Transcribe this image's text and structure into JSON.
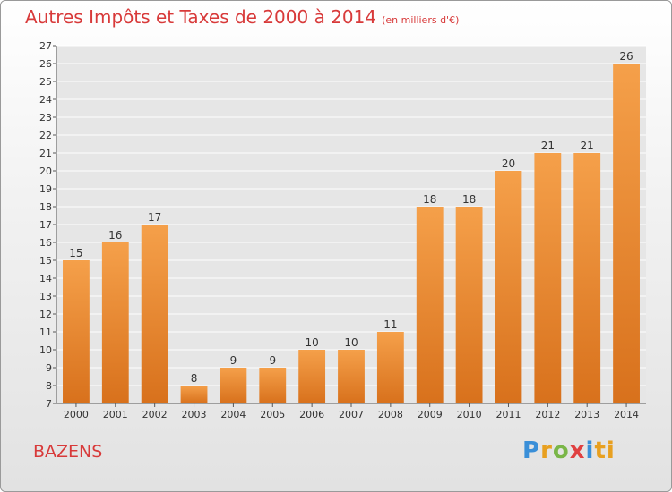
{
  "header": {
    "title": "Autres Impôts et Taxes de 2000 à 2014",
    "unit": "(en milliers d'€)"
  },
  "footer": {
    "commune": "BAZENS",
    "logo": [
      "P",
      "r",
      "o",
      "x",
      "i",
      "ti"
    ]
  },
  "colors": {
    "bar_top": "#f5a04a",
    "bar_bottom": "#d8711c",
    "title": "#d83a3a",
    "grid": "#ffffff",
    "plot_bg": "#e6e6e6"
  },
  "chart_data": {
    "type": "bar",
    "title": "Autres Impôts et Taxes de 2000 à 2014",
    "ylabel": "",
    "xlabel": "",
    "categories": [
      "2000",
      "2001",
      "2002",
      "2003",
      "2004",
      "2005",
      "2006",
      "2007",
      "2008",
      "2009",
      "2010",
      "2011",
      "2012",
      "2013",
      "2014"
    ],
    "values": [
      15,
      16,
      17,
      8,
      9,
      9,
      10,
      10,
      11,
      18,
      18,
      20,
      21,
      21,
      26
    ],
    "ylim": [
      7,
      27
    ],
    "yticks": [
      7,
      8,
      9,
      10,
      11,
      12,
      13,
      14,
      15,
      16,
      17,
      18,
      19,
      20,
      21,
      22,
      23,
      24,
      25,
      26,
      27
    ],
    "grid": true,
    "data_labels": true
  }
}
